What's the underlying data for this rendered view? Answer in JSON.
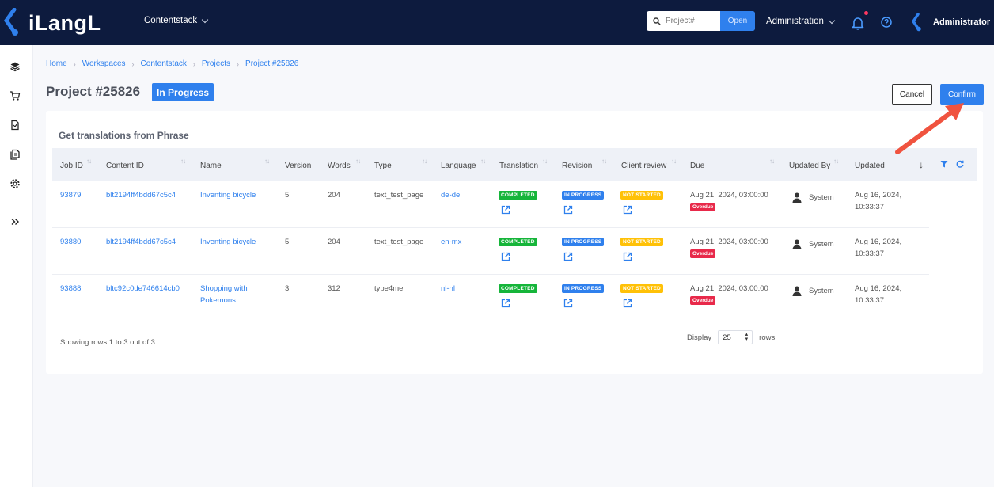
{
  "app": {
    "logo_text": "iLangL",
    "workspace": "Contentstack"
  },
  "topbar": {
    "search_placeholder": "Project#",
    "open_label": "Open",
    "admin_label": "Administration",
    "user_name": "Administrator"
  },
  "breadcrumb": [
    "Home",
    "Workspaces",
    "Contentstack",
    "Projects",
    "Project #25826"
  ],
  "page": {
    "title": "Project #25826",
    "status": "In Progress",
    "cancel_label": "Cancel",
    "confirm_label": "Confirm"
  },
  "card": {
    "title": "Get translations from Phrase"
  },
  "table": {
    "headers": [
      "Job ID",
      "Content ID",
      "Name",
      "Version",
      "Words",
      "Type",
      "Language",
      "Translation",
      "Revision",
      "Client review",
      "Due",
      "Updated By",
      "Updated"
    ],
    "rows": [
      {
        "job_id": "93879",
        "content_id": "blt2194ff4bdd67c5c4",
        "name": "Inventing bicycle",
        "name2": "",
        "version": "5",
        "words": "204",
        "type": "text_test_page",
        "language": "de-de",
        "translation": "COMPLETED",
        "revision": "IN PROGRESS",
        "client_review": "NOT STARTED",
        "due": "Aug 21, 2024, 03:00:00",
        "overdue": "Overdue",
        "updated_by": "System",
        "updated1": "Aug 16, 2024,",
        "updated2": "10:33:37"
      },
      {
        "job_id": "93880",
        "content_id": "blt2194ff4bdd67c5c4",
        "name": "Inventing bicycle",
        "name2": "",
        "version": "5",
        "words": "204",
        "type": "text_test_page",
        "language": "en-mx",
        "translation": "COMPLETED",
        "revision": "IN PROGRESS",
        "client_review": "NOT STARTED",
        "due": "Aug 21, 2024, 03:00:00",
        "overdue": "Overdue",
        "updated_by": "System",
        "updated1": "Aug 16, 2024,",
        "updated2": "10:33:37"
      },
      {
        "job_id": "93888",
        "content_id": "bltc92c0de746614cb0",
        "name": "Shopping with",
        "name2": "Pokemons",
        "version": "3",
        "words": "312",
        "type": "type4me",
        "language": "nl-nl",
        "translation": "COMPLETED",
        "revision": "IN PROGRESS",
        "client_review": "NOT STARTED",
        "due": "Aug 21, 2024, 03:00:00",
        "overdue": "Overdue",
        "updated_by": "System",
        "updated1": "Aug 16, 2024,",
        "updated2": "10:33:37"
      }
    ],
    "footer_text": "Showing rows 1 to 3 out of 3",
    "display_label": "Display",
    "rows_value": "25",
    "rows_label": "rows"
  },
  "colors": {
    "topbar": "#0d1b3e",
    "accent": "#2f80ed",
    "completed": "#16b53a",
    "not_started": "#ffc107",
    "overdue": "#e8294a",
    "arrow": "#f0533f"
  },
  "icons": [
    "layers-icon",
    "cart-icon",
    "document-icon",
    "copy-document-icon",
    "gear-icon",
    "double-chevron-icon",
    "search-icon",
    "bell-icon",
    "help-icon",
    "filter-icon",
    "refresh-icon",
    "external-link-icon",
    "person-icon"
  ]
}
